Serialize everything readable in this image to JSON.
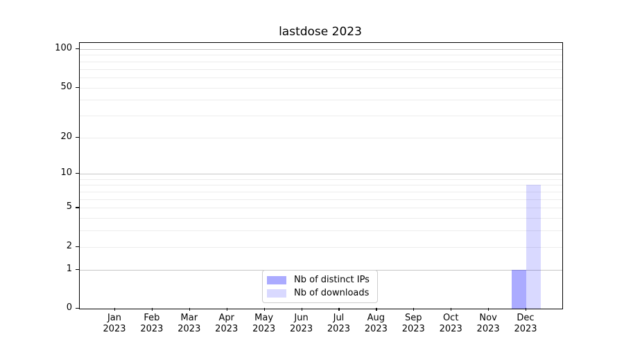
{
  "chart_data": {
    "type": "bar",
    "title": "lastdose 2023",
    "categories": [
      {
        "month": "Jan",
        "year": "2023"
      },
      {
        "month": "Feb",
        "year": "2023"
      },
      {
        "month": "Mar",
        "year": "2023"
      },
      {
        "month": "Apr",
        "year": "2023"
      },
      {
        "month": "May",
        "year": "2023"
      },
      {
        "month": "Jun",
        "year": "2023"
      },
      {
        "month": "Jul",
        "year": "2023"
      },
      {
        "month": "Aug",
        "year": "2023"
      },
      {
        "month": "Sep",
        "year": "2023"
      },
      {
        "month": "Oct",
        "year": "2023"
      },
      {
        "month": "Nov",
        "year": "2023"
      },
      {
        "month": "Dec",
        "year": "2023"
      }
    ],
    "series": [
      {
        "name": "Nb of distinct IPs",
        "color": "rgba(0,0,255,0.33)",
        "values": [
          0,
          0,
          0,
          0,
          0,
          0,
          0,
          0,
          0,
          0,
          0,
          1
        ]
      },
      {
        "name": "Nb of downloads",
        "color": "rgba(0,0,255,0.15)",
        "values": [
          0,
          0,
          0,
          0,
          0,
          0,
          0,
          0,
          0,
          0,
          0,
          8
        ]
      }
    ],
    "y_axis": {
      "scale": "log1p",
      "range": [
        0,
        113
      ],
      "labeled_ticks": [
        0,
        1,
        2,
        5,
        10,
        20,
        50,
        100
      ],
      "major_gridlines": [
        1,
        10,
        100
      ],
      "minor_gridlines": [
        2,
        3,
        4,
        5,
        6,
        7,
        8,
        9,
        20,
        30,
        40,
        50,
        60,
        70,
        80,
        90
      ]
    },
    "legend": {
      "position": "lower center"
    }
  }
}
